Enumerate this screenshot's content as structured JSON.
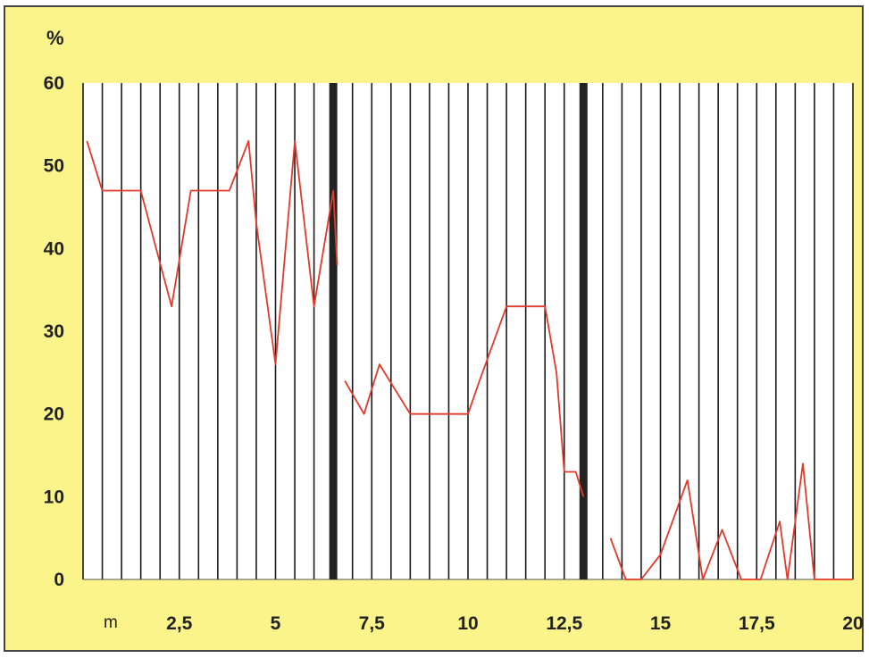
{
  "chart_data": {
    "type": "line",
    "title": "",
    "ylabel": "%",
    "xlabel": "m",
    "ylim": [
      0,
      60
    ],
    "xlim": [
      0,
      20
    ],
    "y_ticks": [
      0,
      10,
      20,
      30,
      40,
      50,
      60
    ],
    "y_tick_labels": [
      "0",
      "10",
      "20",
      "30",
      "40",
      "50",
      "60"
    ],
    "x_ticks": [
      2.5,
      5,
      7.5,
      10,
      12.5,
      15,
      17.5,
      20
    ],
    "x_tick_labels": [
      "2,5",
      "5",
      "7,5",
      "10",
      "12,5",
      "15",
      "17,5",
      "20"
    ],
    "grid": "vertical lines every 0.5 m",
    "section_dividers_x": [
      6.5,
      13.0
    ],
    "series": [
      {
        "color": "#e23a2a",
        "x": [
          0.1,
          0.5,
          1.5,
          2.3,
          2.8,
          3.8,
          4.3,
          4.5,
          5.0,
          5.5,
          6.0,
          6.5,
          6.6,
          6.7,
          6.8,
          7.3,
          7.7,
          8.5,
          9.0,
          9.5,
          10.0,
          10.3,
          11.0,
          12.0,
          12.3,
          12.5,
          12.8,
          13.0,
          13.1,
          13.7,
          14.1,
          14.5,
          15.0,
          15.7,
          16.1,
          16.6,
          17.1,
          17.6,
          18.1,
          18.3,
          18.7,
          19.0,
          19.4,
          20.0
        ],
        "y": [
          53,
          47,
          47,
          33,
          47,
          47,
          53,
          43,
          26,
          53,
          33,
          47,
          38,
          null,
          24,
          20,
          26,
          20,
          20,
          20,
          20,
          24,
          33,
          33,
          25,
          13,
          13,
          10,
          null,
          5,
          0,
          0,
          3,
          12,
          0,
          6,
          0,
          0,
          7,
          0,
          14,
          0,
          0,
          0
        ]
      }
    ]
  }
}
